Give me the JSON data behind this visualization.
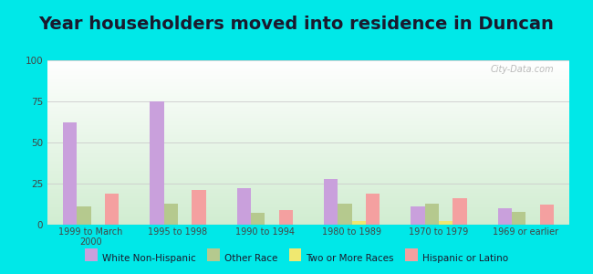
{
  "title": "Year householders moved into residence in Duncan",
  "categories": [
    "1999 to March\n2000",
    "1995 to 1998",
    "1990 to 1994",
    "1980 to 1989",
    "1970 to 1979",
    "1969 or earlier"
  ],
  "series": {
    "White Non-Hispanic": [
      62,
      75,
      22,
      28,
      11,
      10
    ],
    "Other Race": [
      11,
      13,
      7,
      13,
      13,
      8
    ],
    "Two or More Races": [
      0,
      0,
      0,
      2,
      2,
      0
    ],
    "Hispanic or Latino": [
      19,
      21,
      9,
      19,
      16,
      12
    ]
  },
  "colors": {
    "White Non-Hispanic": "#c9a0dc",
    "Other Race": "#b5c98e",
    "Two or More Races": "#f0e870",
    "Hispanic or Latino": "#f4a0a0"
  },
  "ylim": [
    0,
    100
  ],
  "yticks": [
    0,
    25,
    50,
    75,
    100
  ],
  "background_outer": "#00e8e8",
  "grid_color": "#cccccc",
  "title_fontsize": 14,
  "title_color": "#1a1a2e",
  "watermark": "City-Data.com"
}
